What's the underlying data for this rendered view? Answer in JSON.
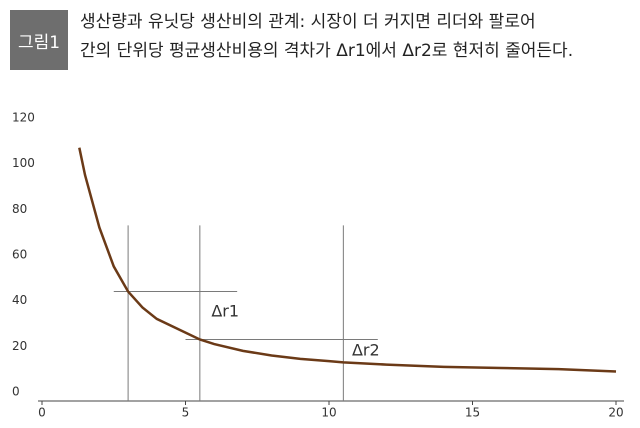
{
  "figure_label": "그림1",
  "chart_data": {
    "type": "line",
    "title": [
      "생산량과 유닛당 생산비의 관계: 시장이 더 커지면 리더와 팔로어",
      "간의 단위당 평균생산비용의 격차가 Δr1에서 Δr2로 현저히 줄어든다."
    ],
    "x": [
      1.3,
      1.5,
      2,
      2.5,
      3,
      3.5,
      4,
      5,
      5.5,
      6,
      7,
      8,
      9,
      10,
      10.5,
      12,
      14,
      16,
      18,
      20
    ],
    "series": [
      {
        "color": "#6b3a17",
        "values": [
          107,
          95,
          72,
          55,
          44,
          37,
          32,
          26,
          23,
          21,
          18,
          16,
          14.5,
          13.5,
          13,
          12,
          11,
          10.5,
          10,
          9
        ]
      }
    ],
    "xlim": [
      0,
      20
    ],
    "xticks": [
      0,
      5,
      10,
      15,
      20
    ],
    "ylim": [
      0,
      120
    ],
    "yticks": [
      0,
      20,
      40,
      60,
      80,
      100,
      120
    ],
    "vlines": {
      "x": [
        3,
        5.5,
        10.5
      ],
      "top": 73,
      "color": "#7a7a7a"
    },
    "hlines": [
      {
        "y": 44,
        "x": [
          2.5,
          6.8
        ]
      },
      {
        "y": 23,
        "x": [
          5,
          11.7
        ]
      }
    ],
    "annotations": [
      {
        "text": "Δr1",
        "x": 5.9,
        "y": 35
      },
      {
        "text": "Δr2",
        "x": 10.8,
        "y": 18
      }
    ]
  }
}
